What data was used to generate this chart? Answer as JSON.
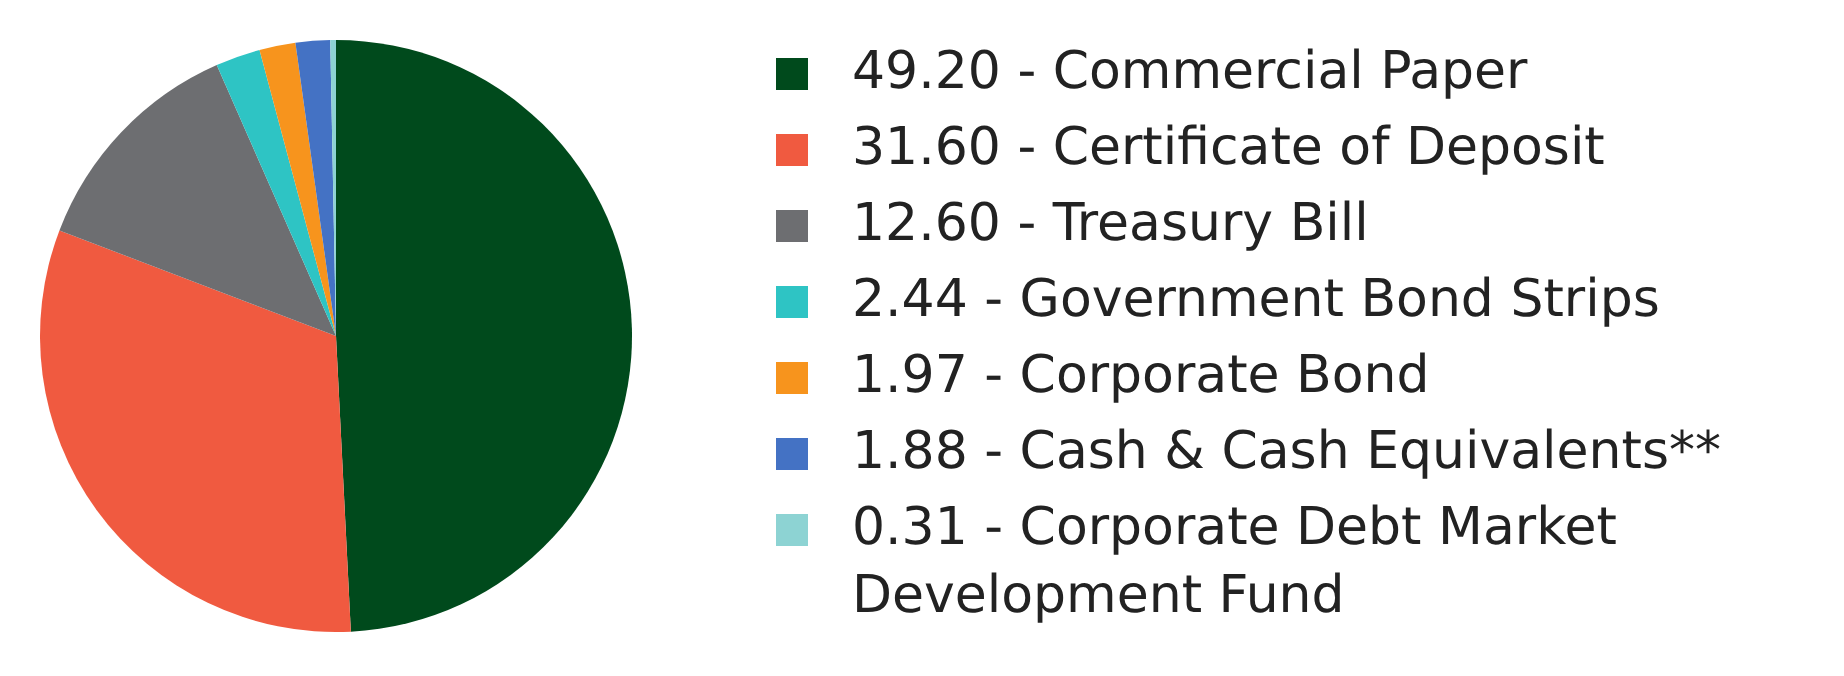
{
  "chart_data": {
    "type": "pie",
    "categories": [
      "Commercial Paper",
      "Certificate of Deposit",
      "Treasury Bill",
      "Government Bond Strips",
      "Corporate Bond",
      "Cash & Cash Equivalents**",
      "Corporate Debt Market Development Fund"
    ],
    "values": [
      49.2,
      31.6,
      12.6,
      2.44,
      1.97,
      1.88,
      0.31
    ],
    "value_labels": [
      "49.20",
      "31.60",
      "12.60",
      "2.44",
      "1.97",
      "1.88",
      "0.31"
    ],
    "colors": [
      "#004a1c",
      "#f05a40",
      "#6d6e71",
      "#2ec4c4",
      "#f7941d",
      "#4472c4",
      "#8dd3d3"
    ],
    "legend": "right"
  }
}
